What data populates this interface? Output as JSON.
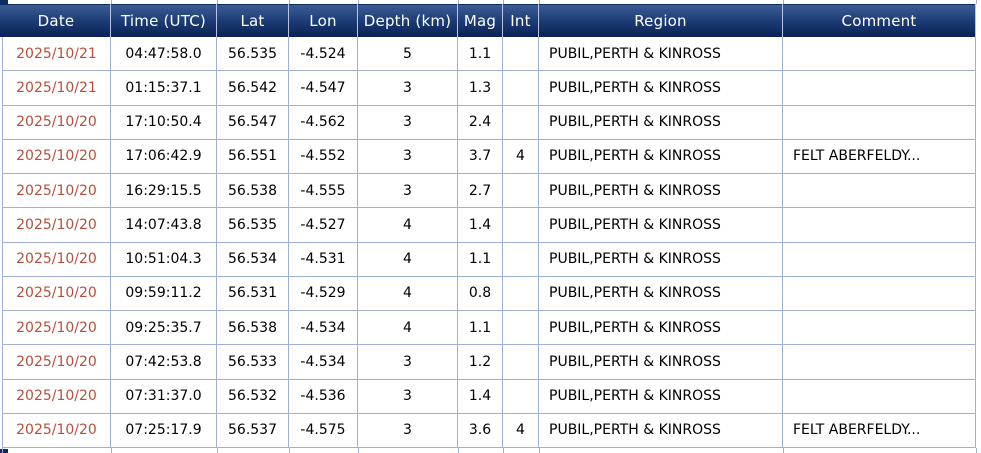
{
  "page": {
    "background_color": "#ffffff",
    "header_bar_top_color": "#3a5c93",
    "header_bar_bottom_color": "#0a2256",
    "header_text_color": "#ffffff",
    "grid_line_color": "#9fb1d5",
    "date_link_color": "#b5503c",
    "body_text_color": "#000000"
  },
  "table": {
    "columns": [
      {
        "key": "date",
        "label": "Date"
      },
      {
        "key": "time",
        "label": "Time (UTC)"
      },
      {
        "key": "lat",
        "label": "Lat"
      },
      {
        "key": "lon",
        "label": "Lon"
      },
      {
        "key": "depth",
        "label": "Depth (km)"
      },
      {
        "key": "mag",
        "label": "Mag"
      },
      {
        "key": "int",
        "label": "Int"
      },
      {
        "key": "region",
        "label": "Region"
      },
      {
        "key": "comment",
        "label": "Comment"
      }
    ],
    "rows": [
      {
        "date": "2025/10/21",
        "time": "04:47:58.0",
        "lat": "56.535",
        "lon": "-4.524",
        "depth": "5",
        "mag": "1.1",
        "int": "",
        "region": "PUBIL,PERTH & KINROSS",
        "comment": ""
      },
      {
        "date": "2025/10/21",
        "time": "01:15:37.1",
        "lat": "56.542",
        "lon": "-4.547",
        "depth": "3",
        "mag": "1.3",
        "int": "",
        "region": "PUBIL,PERTH & KINROSS",
        "comment": ""
      },
      {
        "date": "2025/10/20",
        "time": "17:10:50.4",
        "lat": "56.547",
        "lon": "-4.562",
        "depth": "3",
        "mag": "2.4",
        "int": "",
        "region": "PUBIL,PERTH & KINROSS",
        "comment": ""
      },
      {
        "date": "2025/10/20",
        "time": "17:06:42.9",
        "lat": "56.551",
        "lon": "-4.552",
        "depth": "3",
        "mag": "3.7",
        "int": "4",
        "region": "PUBIL,PERTH & KINROSS",
        "comment": "FELT ABERFELDY..."
      },
      {
        "date": "2025/10/20",
        "time": "16:29:15.5",
        "lat": "56.538",
        "lon": "-4.555",
        "depth": "3",
        "mag": "2.7",
        "int": "",
        "region": "PUBIL,PERTH & KINROSS",
        "comment": ""
      },
      {
        "date": "2025/10/20",
        "time": "14:07:43.8",
        "lat": "56.535",
        "lon": "-4.527",
        "depth": "4",
        "mag": "1.4",
        "int": "",
        "region": "PUBIL,PERTH & KINROSS",
        "comment": ""
      },
      {
        "date": "2025/10/20",
        "time": "10:51:04.3",
        "lat": "56.534",
        "lon": "-4.531",
        "depth": "4",
        "mag": "1.1",
        "int": "",
        "region": "PUBIL,PERTH & KINROSS",
        "comment": ""
      },
      {
        "date": "2025/10/20",
        "time": "09:59:11.2",
        "lat": "56.531",
        "lon": "-4.529",
        "depth": "4",
        "mag": "0.8",
        "int": "",
        "region": "PUBIL,PERTH & KINROSS",
        "comment": ""
      },
      {
        "date": "2025/10/20",
        "time": "09:25:35.7",
        "lat": "56.538",
        "lon": "-4.534",
        "depth": "4",
        "mag": "1.1",
        "int": "",
        "region": "PUBIL,PERTH & KINROSS",
        "comment": ""
      },
      {
        "date": "2025/10/20",
        "time": "07:42:53.8",
        "lat": "56.533",
        "lon": "-4.534",
        "depth": "3",
        "mag": "1.2",
        "int": "",
        "region": "PUBIL,PERTH & KINROSS",
        "comment": ""
      },
      {
        "date": "2025/10/20",
        "time": "07:31:37.0",
        "lat": "56.532",
        "lon": "-4.536",
        "depth": "3",
        "mag": "1.4",
        "int": "",
        "region": "PUBIL,PERTH & KINROSS",
        "comment": ""
      },
      {
        "date": "2025/10/20",
        "time": "07:25:17.9",
        "lat": "56.537",
        "lon": "-4.575",
        "depth": "3",
        "mag": "3.6",
        "int": "4",
        "region": "PUBIL,PERTH & KINROSS",
        "comment": "FELT ABERFELDY..."
      }
    ]
  }
}
